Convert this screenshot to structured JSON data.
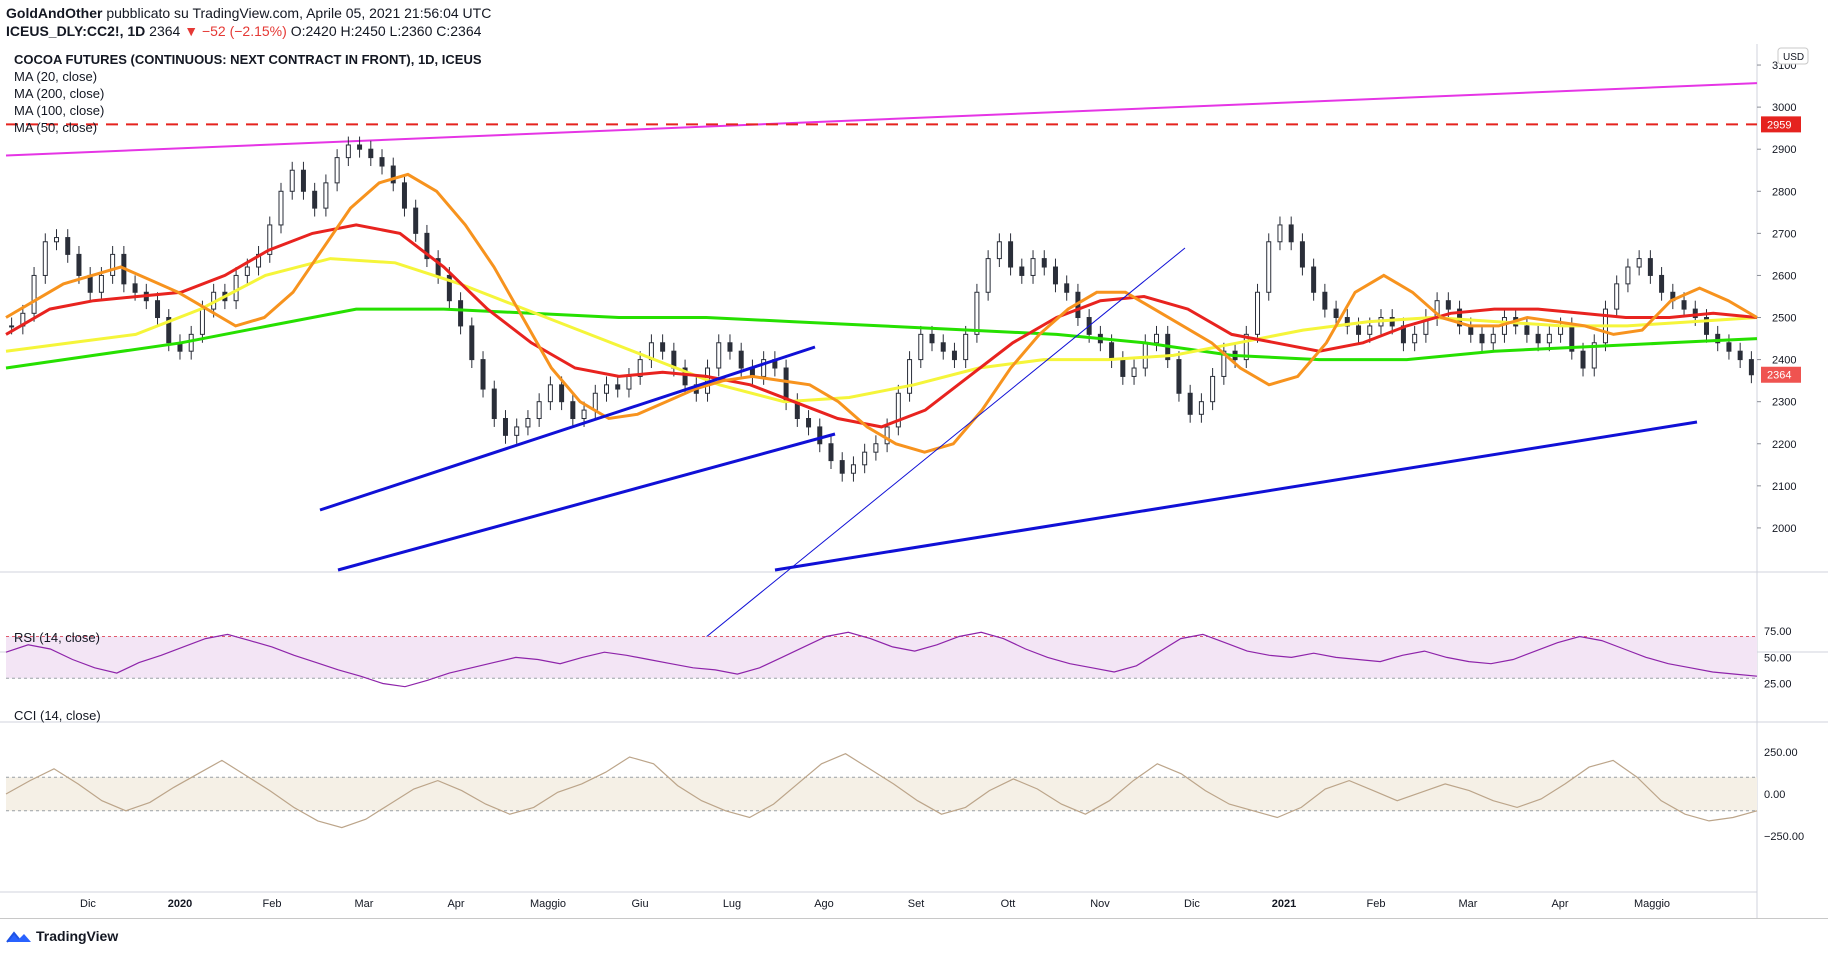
{
  "header": {
    "author": "GoldAndOther",
    "published": " pubblicato su TradingView.com, Aprile 05, 2021 21:56:04 UTC",
    "symbol": "ICEUS_DLY:CC2!, 1D",
    "last": "2364",
    "change": "▼ −52 (−2.15%)",
    "ohlc": "O:2420 H:2450 L:2360 C:2364"
  },
  "legend": {
    "title": "COCOA FUTURES (CONTINUOUS: NEXT CONTRACT IN FRONT), 1D, ICEUS",
    "ma1": "MA (20, close)",
    "ma2": "MA (200, close)",
    "ma3": "MA (100, close)",
    "ma4": "MA (50, close)",
    "rsi": "RSI (14, close)",
    "cci": "CCI (14, close)"
  },
  "footer": {
    "brand": "TradingView"
  },
  "colors": {
    "ma20": "#f7931e",
    "ma50": "#e8231f",
    "ma100": "#f5f53a",
    "ma200": "#26e000",
    "trend": "#1010d6",
    "resistance": "#e535e5",
    "level": "#e5231f",
    "rsi": "#8e24aa",
    "cci": "#bca58a"
  },
  "chart_data": [
    {
      "type": "candlestick",
      "title": "COCOA FUTURES (CONTINUOUS: NEXT CONTRACT IN FRONT), 1D, ICEUS",
      "currency": "USD",
      "ylim": [
        1900,
        3150
      ],
      "y_ticks": [
        "3100",
        "3000",
        "2900",
        "2800",
        "2700",
        "2600",
        "2500",
        "2400",
        "2300",
        "2200",
        "2100",
        "2000"
      ],
      "x_labels": [
        "Dic",
        "2020",
        "Feb",
        "Mar",
        "Apr",
        "Maggio",
        "Giu",
        "Lug",
        "Ago",
        "Set",
        "Ott",
        "Nov",
        "Dic",
        "2021",
        "Feb",
        "Mar",
        "Apr",
        "Maggio"
      ],
      "level_label": "2959",
      "last_label": "2364",
      "close": [
        2480,
        2510,
        2600,
        2680,
        2690,
        2650,
        2600,
        2560,
        2600,
        2650,
        2580,
        2560,
        2540,
        2500,
        2440,
        2420,
        2460,
        2520,
        2560,
        2540,
        2600,
        2620,
        2650,
        2720,
        2800,
        2850,
        2800,
        2760,
        2820,
        2880,
        2910,
        2900,
        2880,
        2860,
        2820,
        2760,
        2700,
        2640,
        2600,
        2540,
        2480,
        2400,
        2330,
        2260,
        2220,
        2240,
        2260,
        2300,
        2340,
        2300,
        2260,
        2280,
        2320,
        2340,
        2330,
        2360,
        2400,
        2440,
        2420,
        2380,
        2340,
        2320,
        2380,
        2440,
        2420,
        2380,
        2360,
        2400,
        2380,
        2300,
        2260,
        2240,
        2200,
        2160,
        2130,
        2150,
        2180,
        2200,
        2240,
        2320,
        2400,
        2460,
        2440,
        2420,
        2400,
        2460,
        2560,
        2640,
        2680,
        2620,
        2600,
        2640,
        2620,
        2580,
        2560,
        2500,
        2460,
        2440,
        2400,
        2360,
        2380,
        2440,
        2460,
        2400,
        2320,
        2270,
        2300,
        2360,
        2420,
        2400,
        2460,
        2560,
        2680,
        2720,
        2680,
        2620,
        2560,
        2520,
        2500,
        2480,
        2460,
        2480,
        2500,
        2480,
        2440,
        2460,
        2500,
        2540,
        2520,
        2480,
        2460,
        2440,
        2460,
        2500,
        2480,
        2460,
        2440,
        2460,
        2480,
        2420,
        2380,
        2440,
        2520,
        2580,
        2620,
        2640,
        2600,
        2560,
        2540,
        2520,
        2500,
        2460,
        2440,
        2420,
        2400,
        2364
      ],
      "ma20": [
        2500,
        2540,
        2580,
        2600,
        2620,
        2590,
        2560,
        2520,
        2480,
        2500,
        2560,
        2660,
        2760,
        2820,
        2840,
        2800,
        2720,
        2620,
        2500,
        2380,
        2300,
        2260,
        2270,
        2300,
        2330,
        2350,
        2360,
        2350,
        2340,
        2300,
        2240,
        2200,
        2180,
        2200,
        2280,
        2380,
        2460,
        2520,
        2560,
        2560,
        2520,
        2480,
        2440,
        2380,
        2340,
        2360,
        2440,
        2560,
        2600,
        2560,
        2500,
        2480,
        2480,
        2500,
        2490,
        2480,
        2460,
        2470,
        2540,
        2570,
        2540,
        2500
      ],
      "ma50": [
        2460,
        2520,
        2540,
        2550,
        2560,
        2600,
        2660,
        2700,
        2720,
        2700,
        2620,
        2520,
        2440,
        2380,
        2360,
        2370,
        2360,
        2340,
        2300,
        2260,
        2240,
        2280,
        2360,
        2440,
        2500,
        2540,
        2550,
        2520,
        2460,
        2440,
        2420,
        2440,
        2480,
        2510,
        2520,
        2520,
        2510,
        2500,
        2500,
        2510,
        2500
      ],
      "ma100": [
        2420,
        2440,
        2460,
        2520,
        2600,
        2640,
        2630,
        2580,
        2520,
        2460,
        2400,
        2340,
        2300,
        2310,
        2340,
        2380,
        2400,
        2400,
        2410,
        2440,
        2470,
        2490,
        2500,
        2490,
        2480,
        2480,
        2490,
        2500
      ],
      "ma200": [
        2380,
        2410,
        2440,
        2480,
        2520,
        2520,
        2510,
        2500,
        2500,
        2490,
        2480,
        2470,
        2460,
        2440,
        2410,
        2400,
        2400,
        2420,
        2430,
        2440,
        2450
      ]
    },
    {
      "type": "line",
      "name": "RSI (14, close)",
      "y_ticks": [
        "75.00",
        "50.00",
        "25.00"
      ],
      "values": [
        55,
        62,
        58,
        48,
        40,
        35,
        45,
        52,
        60,
        68,
        72,
        66,
        60,
        52,
        45,
        38,
        32,
        25,
        22,
        28,
        35,
        40,
        45,
        50,
        48,
        44,
        50,
        55,
        52,
        48,
        44,
        40,
        38,
        34,
        40,
        50,
        60,
        70,
        74,
        68,
        60,
        56,
        62,
        70,
        74,
        68,
        58,
        50,
        44,
        40,
        36,
        42,
        55,
        68,
        72,
        64,
        56,
        52,
        50,
        54,
        50,
        48,
        46,
        52,
        56,
        50,
        46,
        44,
        48,
        56,
        64,
        70,
        66,
        58,
        50,
        44,
        40,
        36,
        34,
        32
      ]
    },
    {
      "type": "line",
      "name": "CCI (14, close)",
      "y_ticks": [
        "250.00",
        "0.00",
        "−250.00"
      ],
      "values": [
        0,
        80,
        150,
        60,
        -40,
        -100,
        -50,
        40,
        120,
        200,
        110,
        20,
        -80,
        -160,
        -200,
        -150,
        -60,
        30,
        80,
        20,
        -60,
        -120,
        -80,
        10,
        60,
        130,
        220,
        180,
        50,
        -40,
        -100,
        -140,
        -60,
        60,
        180,
        240,
        150,
        60,
        -40,
        -120,
        -80,
        20,
        90,
        30,
        -60,
        -120,
        -40,
        80,
        180,
        120,
        20,
        -60,
        -100,
        -140,
        -80,
        30,
        80,
        20,
        -40,
        10,
        60,
        20,
        -40,
        -80,
        -30,
        60,
        160,
        200,
        100,
        -40,
        -120,
        -160,
        -140,
        -100
      ]
    }
  ]
}
